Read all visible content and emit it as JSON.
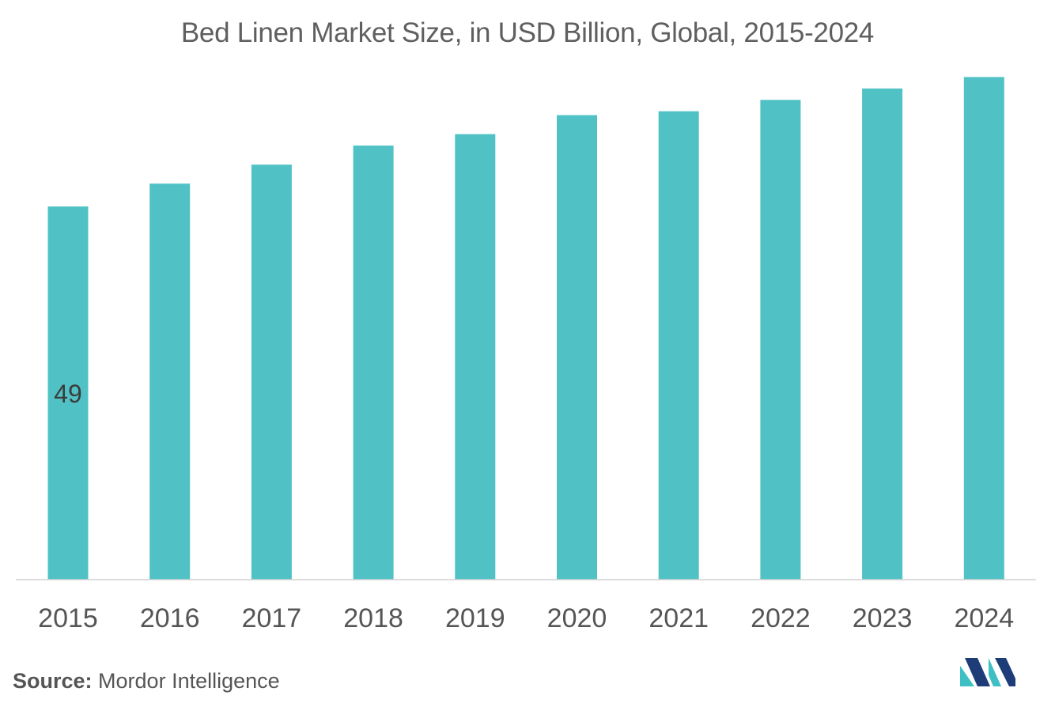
{
  "header": {
    "title": "Bed Linen Market Size, in USD Billion, Global, 2015-2024"
  },
  "footer": {
    "source_label": "Source:",
    "source_text": "Mordor Intelligence"
  },
  "colors": {
    "bar": "#50c2c6",
    "axis": "#d0d0d0",
    "tick_text": "#555555",
    "data_label": "#3c3c3c",
    "logo_dark": "#1e3c78",
    "logo_light": "#3ebfc4"
  },
  "chart_data": {
    "type": "bar",
    "title": "Bed Linen Market Size, in USD Billion, Global, 2015-2024",
    "xlabel": "",
    "ylabel": "",
    "categories": [
      "2015",
      "2016",
      "2017",
      "2018",
      "2019",
      "2020",
      "2021",
      "2022",
      "2023",
      "2024"
    ],
    "values": [
      49,
      52,
      54.5,
      57,
      58.5,
      61,
      61.5,
      63,
      64.5,
      66
    ],
    "data_labels": [
      "49",
      "",
      "",
      "",
      "",
      "",
      "",
      "",
      "",
      ""
    ],
    "ylim": [
      0,
      73
    ],
    "grid": false,
    "legend": "none"
  }
}
